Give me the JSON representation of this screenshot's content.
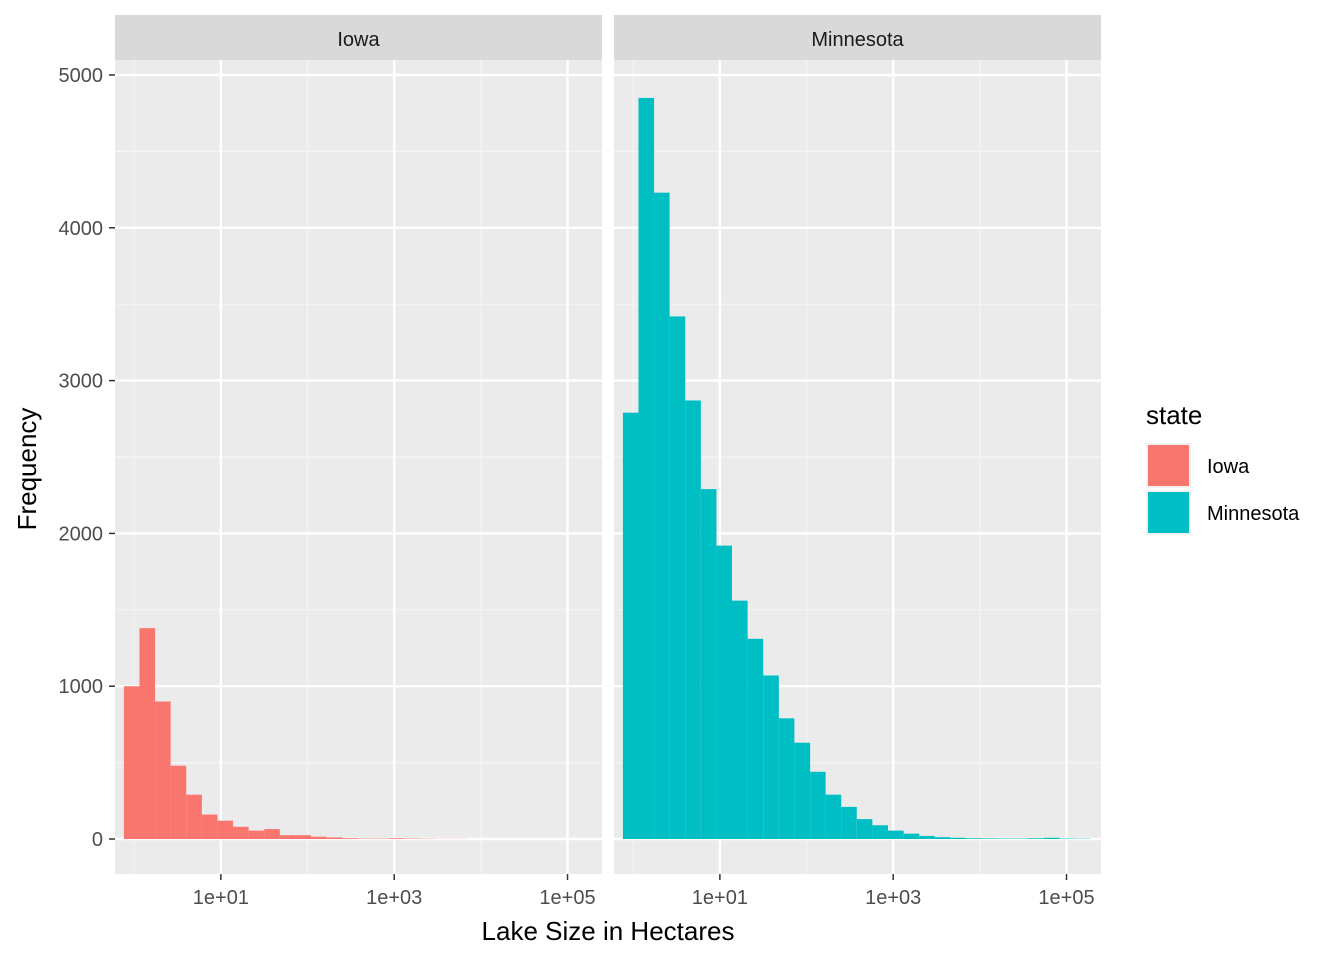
{
  "chart_data": {
    "type": "bar",
    "subtype": "faceted-histogram",
    "xlabel": "Lake Size in Hectares",
    "ylabel": "Frequency",
    "x_scale": "log10",
    "xlim": [
      0.6,
      250000
    ],
    "ylim": [
      0,
      5000
    ],
    "y_ticks": [
      "0",
      "1000",
      "2000",
      "3000",
      "4000",
      "5000"
    ],
    "x_ticks": [
      {
        "value": 10,
        "label": "1e+01"
      },
      {
        "value": 1000,
        "label": "1e+03"
      },
      {
        "value": 100000,
        "label": "1e+05"
      }
    ],
    "grid": true,
    "legend": {
      "title": "state",
      "placement": "right",
      "entries": [
        {
          "label": "Iowa",
          "color": "#F8766D"
        },
        {
          "label": "Minnesota",
          "color": "#00BFC4"
        }
      ]
    },
    "facets": [
      {
        "name": "Iowa",
        "color": "#F8766D",
        "bins": [
          {
            "x0": 0.76,
            "x1": 1.15,
            "count": 1000
          },
          {
            "x0": 1.15,
            "x1": 1.74,
            "count": 1380
          },
          {
            "x0": 1.74,
            "x1": 2.63,
            "count": 900
          },
          {
            "x0": 2.63,
            "x1": 3.98,
            "count": 480
          },
          {
            "x0": 3.98,
            "x1": 6.03,
            "count": 290
          },
          {
            "x0": 6.03,
            "x1": 9.12,
            "count": 160
          },
          {
            "x0": 9.12,
            "x1": 13.8,
            "count": 120
          },
          {
            "x0": 13.8,
            "x1": 20.9,
            "count": 80
          },
          {
            "x0": 20.9,
            "x1": 31.6,
            "count": 55
          },
          {
            "x0": 31.6,
            "x1": 47.9,
            "count": 65
          },
          {
            "x0": 47.9,
            "x1": 72.4,
            "count": 25
          },
          {
            "x0": 72.4,
            "x1": 110,
            "count": 25
          },
          {
            "x0": 110,
            "x1": 166,
            "count": 15
          },
          {
            "x0": 166,
            "x1": 251,
            "count": 10
          },
          {
            "x0": 251,
            "x1": 380,
            "count": 5
          },
          {
            "x0": 380,
            "x1": 575,
            "count": 3
          },
          {
            "x0": 575,
            "x1": 871,
            "count": 3
          },
          {
            "x0": 871,
            "x1": 1320,
            "count": 5
          },
          {
            "x0": 1320,
            "x1": 2000,
            "count": 3
          },
          {
            "x0": 2000,
            "x1": 3020,
            "count": 2
          },
          {
            "x0": 3020,
            "x1": 4570,
            "count": 1
          },
          {
            "x0": 4570,
            "x1": 6920,
            "count": 1
          }
        ]
      },
      {
        "name": "Minnesota",
        "color": "#00BFC4",
        "bins": [
          {
            "x0": 0.76,
            "x1": 1.15,
            "count": 2790
          },
          {
            "x0": 1.15,
            "x1": 1.74,
            "count": 4850
          },
          {
            "x0": 1.74,
            "x1": 2.63,
            "count": 4230
          },
          {
            "x0": 2.63,
            "x1": 3.98,
            "count": 3420
          },
          {
            "x0": 3.98,
            "x1": 6.03,
            "count": 2870
          },
          {
            "x0": 6.03,
            "x1": 9.12,
            "count": 2290
          },
          {
            "x0": 9.12,
            "x1": 13.8,
            "count": 1920
          },
          {
            "x0": 13.8,
            "x1": 20.9,
            "count": 1560
          },
          {
            "x0": 20.9,
            "x1": 31.6,
            "count": 1310
          },
          {
            "x0": 31.6,
            "x1": 47.9,
            "count": 1070
          },
          {
            "x0": 47.9,
            "x1": 72.4,
            "count": 790
          },
          {
            "x0": 72.4,
            "x1": 110,
            "count": 630
          },
          {
            "x0": 110,
            "x1": 166,
            "count": 440
          },
          {
            "x0": 166,
            "x1": 251,
            "count": 290
          },
          {
            "x0": 251,
            "x1": 380,
            "count": 210
          },
          {
            "x0": 380,
            "x1": 575,
            "count": 130
          },
          {
            "x0": 575,
            "x1": 871,
            "count": 90
          },
          {
            "x0": 871,
            "x1": 1320,
            "count": 55
          },
          {
            "x0": 1320,
            "x1": 2000,
            "count": 35
          },
          {
            "x0": 2000,
            "x1": 3020,
            "count": 20
          },
          {
            "x0": 3020,
            "x1": 4570,
            "count": 12
          },
          {
            "x0": 4570,
            "x1": 6920,
            "count": 8
          },
          {
            "x0": 6920,
            "x1": 10500,
            "count": 5
          },
          {
            "x0": 10500,
            "x1": 15800,
            "count": 4
          },
          {
            "x0": 15800,
            "x1": 24000,
            "count": 3
          },
          {
            "x0": 24000,
            "x1": 36300,
            "count": 3
          },
          {
            "x0": 36300,
            "x1": 55000,
            "count": 5
          },
          {
            "x0": 55000,
            "x1": 83200,
            "count": 8
          },
          {
            "x0": 83200,
            "x1": 126000,
            "count": 3
          },
          {
            "x0": 126000,
            "x1": 191000,
            "count": 2
          }
        ]
      }
    ]
  }
}
